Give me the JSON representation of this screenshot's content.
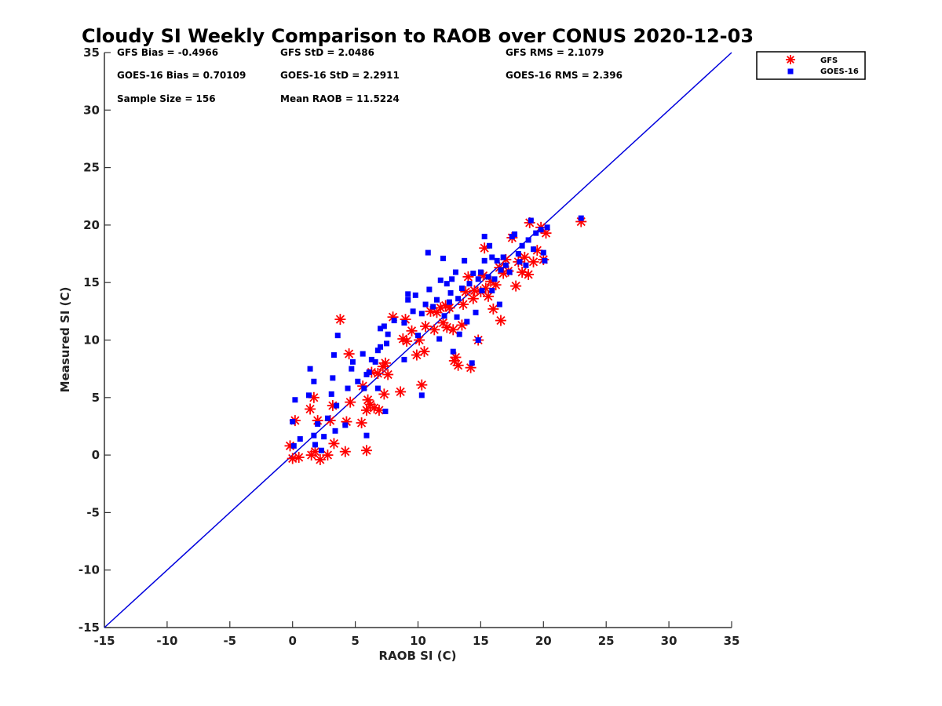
{
  "chart_data": {
    "type": "scatter",
    "title": "Cloudy SI Weekly Comparison to RAOB over CONUS 2020-12-03",
    "xlabel": "RAOB SI (C)",
    "ylabel": "Measured SI (C)",
    "xlim": [
      -15,
      35
    ],
    "ylim": [
      -15,
      35
    ],
    "xticks": [
      "-15",
      "-10",
      "-5",
      "0",
      "5",
      "10",
      "15",
      "20",
      "25",
      "30",
      "35"
    ],
    "yticks": [
      "-15",
      "-10",
      "-5",
      "0",
      "5",
      "10",
      "15",
      "20",
      "25",
      "30",
      "35"
    ],
    "grid": false,
    "legend_position": "top-right outside plot",
    "reference_line": {
      "from": [
        -15,
        -15
      ],
      "to": [
        35,
        35
      ],
      "color": "#0000dd"
    },
    "stats": [
      [
        "GFS Bias = -0.4966",
        "GFS StD = 2.0486",
        "GFS RMS = 2.1079"
      ],
      [
        "GOES-16 Bias = 0.70109",
        "GOES-16 StD = 2.2911",
        "GOES-16 RMS = 2.396"
      ],
      [
        "Sample Size = 156",
        "Mean RAOB = 11.5224",
        ""
      ]
    ],
    "series": [
      {
        "name": "GFS",
        "marker": "asterisk",
        "color": "#ff0000",
        "points": [
          [
            0,
            -0.3
          ],
          [
            0.5,
            -0.2
          ],
          [
            1.5,
            0
          ],
          [
            1.8,
            0.3
          ],
          [
            2.2,
            -0.4
          ],
          [
            2.8,
            0
          ],
          [
            3.3,
            1
          ],
          [
            4.2,
            0.3
          ],
          [
            5.9,
            0.4
          ],
          [
            -0.2,
            0.8
          ],
          [
            2,
            3
          ],
          [
            3,
            3
          ],
          [
            3.2,
            4.3
          ],
          [
            4.3,
            2.9
          ],
          [
            1.4,
            4
          ],
          [
            1.7,
            5
          ],
          [
            0.2,
            3
          ],
          [
            3.8,
            11.8
          ],
          [
            4.5,
            8.8
          ],
          [
            4.6,
            4.6
          ],
          [
            5.5,
            2.8
          ],
          [
            5.6,
            6
          ],
          [
            5.9,
            3.9
          ],
          [
            6,
            4.8
          ],
          [
            6.2,
            4.4
          ],
          [
            6.3,
            7.2
          ],
          [
            6.5,
            4.1
          ],
          [
            6.9,
            3.9
          ],
          [
            6.8,
            7.1
          ],
          [
            7.2,
            7.7
          ],
          [
            7.4,
            8
          ],
          [
            7.6,
            7
          ],
          [
            7.3,
            5.3
          ],
          [
            8,
            12
          ],
          [
            8.6,
            5.5
          ],
          [
            8.8,
            10.1
          ],
          [
            9.1,
            9.9
          ],
          [
            9,
            11.8
          ],
          [
            9.5,
            10.8
          ],
          [
            9.9,
            8.7
          ],
          [
            10.1,
            10
          ],
          [
            10.3,
            6.1
          ],
          [
            10.5,
            9
          ],
          [
            10.6,
            11.2
          ],
          [
            11,
            12.5
          ],
          [
            11.3,
            10.9
          ],
          [
            11.8,
            12.8
          ],
          [
            12,
            11.5
          ],
          [
            12.3,
            11.1
          ],
          [
            12.5,
            12.8
          ],
          [
            12.8,
            10.9
          ],
          [
            12.9,
            8.2
          ],
          [
            13.2,
            7.8
          ],
          [
            13.5,
            11.3
          ],
          [
            13.6,
            13.1
          ],
          [
            13.8,
            14.2
          ],
          [
            14,
            15.5
          ],
          [
            14.2,
            7.6
          ],
          [
            14.4,
            13.6
          ],
          [
            14.8,
            10
          ],
          [
            15,
            14.2
          ],
          [
            15.2,
            15.6
          ],
          [
            15.3,
            18
          ],
          [
            15.6,
            13.8
          ],
          [
            15.8,
            15.1
          ],
          [
            16,
            12.7
          ],
          [
            16.2,
            14.8
          ],
          [
            16.5,
            16.3
          ],
          [
            16.6,
            11.7
          ],
          [
            17,
            17
          ],
          [
            17.2,
            16
          ],
          [
            17.5,
            18.9
          ],
          [
            17.8,
            14.7
          ],
          [
            18,
            16.8
          ],
          [
            18.3,
            15.9
          ],
          [
            18.5,
            17.2
          ],
          [
            18.8,
            15.7
          ],
          [
            18.9,
            20.2
          ],
          [
            19.2,
            16.8
          ],
          [
            19.5,
            17.8
          ],
          [
            19.8,
            19.8
          ],
          [
            20,
            17
          ],
          [
            20.2,
            19.3
          ],
          [
            23,
            20.3
          ],
          [
            13,
            8.5
          ],
          [
            14.5,
            14.3
          ],
          [
            12.2,
            13
          ],
          [
            11.5,
            12.4
          ],
          [
            15.4,
            14.5
          ],
          [
            16.8,
            15.8
          ]
        ]
      },
      {
        "name": "GOES-16",
        "marker": "square",
        "color": "#0000ff",
        "points": [
          [
            0,
            2.9
          ],
          [
            0.2,
            4.8
          ],
          [
            0.1,
            0.8
          ],
          [
            0.6,
            1.4
          ],
          [
            1.4,
            7.5
          ],
          [
            1.3,
            5.2
          ],
          [
            1.7,
            6.4
          ],
          [
            1.7,
            1.7
          ],
          [
            1.8,
            0.9
          ],
          [
            2,
            2.7
          ],
          [
            2.3,
            0.4
          ],
          [
            2.5,
            1.6
          ],
          [
            2.8,
            3.2
          ],
          [
            3.1,
            5.3
          ],
          [
            3.2,
            6.7
          ],
          [
            3.3,
            8.7
          ],
          [
            3.5,
            4.3
          ],
          [
            3.4,
            2.1
          ],
          [
            3.6,
            10.4
          ],
          [
            4.2,
            2.6
          ],
          [
            4.4,
            5.8
          ],
          [
            4.7,
            7.5
          ],
          [
            4.8,
            8.1
          ],
          [
            5.2,
            6.4
          ],
          [
            5.6,
            8.8
          ],
          [
            5.7,
            5.8
          ],
          [
            5.9,
            7
          ],
          [
            5.9,
            1.7
          ],
          [
            6.1,
            7.2
          ],
          [
            6.3,
            8.3
          ],
          [
            6.6,
            8.1
          ],
          [
            6.8,
            5.8
          ],
          [
            6.8,
            9.1
          ],
          [
            7,
            9.4
          ],
          [
            7,
            11
          ],
          [
            7.3,
            11.2
          ],
          [
            7.5,
            9.7
          ],
          [
            7.6,
            10.5
          ],
          [
            7.4,
            3.8
          ],
          [
            8.1,
            11.7
          ],
          [
            8.9,
            8.3
          ],
          [
            8.9,
            11.5
          ],
          [
            9.2,
            13.5
          ],
          [
            9.2,
            14
          ],
          [
            9.6,
            12.5
          ],
          [
            9.8,
            13.9
          ],
          [
            10,
            10.4
          ],
          [
            10.3,
            12.3
          ],
          [
            10.3,
            5.2
          ],
          [
            10.6,
            13.1
          ],
          [
            10.8,
            17.6
          ],
          [
            10.9,
            14.4
          ],
          [
            11.2,
            12.9
          ],
          [
            11.5,
            13.5
          ],
          [
            11.7,
            10.1
          ],
          [
            11.8,
            15.2
          ],
          [
            12,
            17.1
          ],
          [
            12.1,
            12.1
          ],
          [
            12.3,
            14.9
          ],
          [
            12.5,
            13.3
          ],
          [
            12.7,
            15.3
          ],
          [
            12.8,
            9
          ],
          [
            13,
            15.9
          ],
          [
            13.2,
            13.6
          ],
          [
            13.3,
            10.5
          ],
          [
            13.5,
            14.5
          ],
          [
            13.7,
            16.9
          ],
          [
            13.9,
            11.6
          ],
          [
            14.1,
            14.9
          ],
          [
            14.3,
            8
          ],
          [
            14.4,
            15.8
          ],
          [
            14.6,
            12.4
          ],
          [
            14.8,
            15.3
          ],
          [
            15,
            15.9
          ],
          [
            15.1,
            14.3
          ],
          [
            15.3,
            16.9
          ],
          [
            15.3,
            19
          ],
          [
            15.6,
            15.5
          ],
          [
            15.7,
            18.2
          ],
          [
            15.9,
            14.3
          ],
          [
            16.1,
            15.3
          ],
          [
            16.3,
            16.9
          ],
          [
            16.5,
            13.1
          ],
          [
            16.8,
            17.2
          ],
          [
            17,
            16.5
          ],
          [
            17.3,
            15.9
          ],
          [
            17.5,
            19
          ],
          [
            17.7,
            19.2
          ],
          [
            18,
            17.5
          ],
          [
            18.1,
            16.8
          ],
          [
            18.3,
            18.2
          ],
          [
            18.6,
            16.5
          ],
          [
            18.8,
            18.7
          ],
          [
            19,
            20.4
          ],
          [
            19.2,
            17.9
          ],
          [
            19.4,
            19.3
          ],
          [
            19.8,
            19.6
          ],
          [
            20,
            17.6
          ],
          [
            20.1,
            16.9
          ],
          [
            20.3,
            19.8
          ],
          [
            23,
            20.6
          ],
          [
            14.8,
            10
          ],
          [
            13.1,
            12
          ],
          [
            12.6,
            14.1
          ],
          [
            16.6,
            16.1
          ],
          [
            15.9,
            17.2
          ]
        ]
      }
    ]
  }
}
